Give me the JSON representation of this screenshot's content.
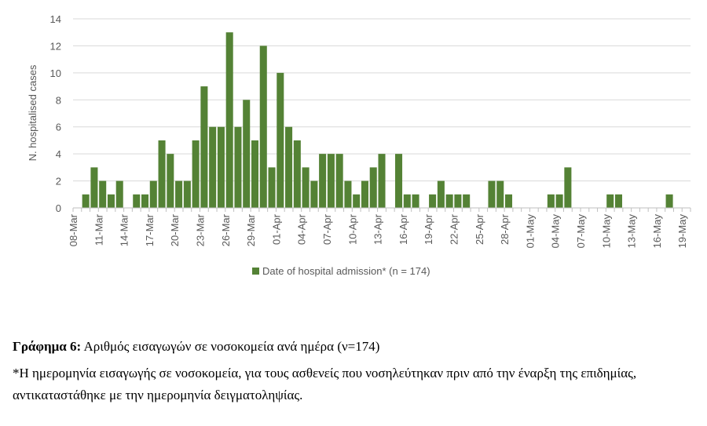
{
  "chart_data": {
    "type": "bar",
    "ylabel": "N. hospitalised cases",
    "xlabel": "",
    "ylim": [
      0,
      14
    ],
    "yticks": [
      0,
      2,
      4,
      6,
      8,
      10,
      12,
      14
    ],
    "grid": true,
    "legend_position": "bottom",
    "bar_color": "#548235",
    "categories": [
      "08-Mar",
      "09-Mar",
      "10-Mar",
      "11-Mar",
      "12-Mar",
      "13-Mar",
      "14-Mar",
      "15-Mar",
      "16-Mar",
      "17-Mar",
      "18-Mar",
      "19-Mar",
      "20-Mar",
      "21-Mar",
      "22-Mar",
      "23-Mar",
      "24-Mar",
      "25-Mar",
      "26-Mar",
      "27-Mar",
      "28-Mar",
      "29-Mar",
      "30-Mar",
      "31-Mar",
      "01-Apr",
      "02-Apr",
      "03-Apr",
      "04-Apr",
      "05-Apr",
      "06-Apr",
      "07-Apr",
      "08-Apr",
      "09-Apr",
      "10-Apr",
      "11-Apr",
      "12-Apr",
      "13-Apr",
      "14-Apr",
      "15-Apr",
      "16-Apr",
      "17-Apr",
      "18-Apr",
      "19-Apr",
      "20-Apr",
      "21-Apr",
      "22-Apr",
      "23-Apr",
      "24-Apr",
      "25-Apr",
      "26-Apr",
      "27-Apr",
      "28-Apr",
      "29-Apr",
      "30-Apr",
      "01-May",
      "02-May",
      "03-May",
      "04-May",
      "05-May",
      "06-May",
      "07-May",
      "08-May",
      "09-May",
      "10-May",
      "11-May",
      "12-May",
      "13-May",
      "14-May",
      "15-May",
      "16-May",
      "17-May",
      "18-May",
      "19-May"
    ],
    "tick_labels": [
      "08-Mar",
      "11-Mar",
      "14-Mar",
      "17-Mar",
      "20-Mar",
      "23-Mar",
      "26-Mar",
      "29-Mar",
      "01-Apr",
      "04-Apr",
      "07-Apr",
      "10-Apr",
      "13-Apr",
      "16-Apr",
      "19-Apr",
      "22-Apr",
      "25-Apr",
      "28-Apr",
      "01-May",
      "04-May",
      "07-May",
      "10-May",
      "13-May",
      "16-May",
      "19-May"
    ],
    "series": [
      {
        "name": "Date of hospital admission* (n = 174)",
        "values": [
          0,
          1,
          3,
          2,
          1,
          2,
          0,
          1,
          1,
          2,
          5,
          4,
          2,
          2,
          5,
          9,
          6,
          6,
          13,
          6,
          8,
          5,
          12,
          3,
          10,
          6,
          5,
          3,
          2,
          4,
          4,
          4,
          2,
          1,
          2,
          3,
          4,
          0,
          4,
          1,
          1,
          0,
          1,
          2,
          1,
          1,
          1,
          0,
          0,
          2,
          2,
          1,
          0,
          0,
          0,
          0,
          1,
          1,
          3,
          0,
          0,
          0,
          0,
          1,
          1,
          0,
          0,
          0,
          0,
          0,
          1,
          0,
          0
        ]
      }
    ]
  },
  "caption": {
    "figure_label": "Γράφημα 6:",
    "figure_text": " Αριθμός εισαγωγών σε νοσοκομεία ανά ημέρα (ν=174)",
    "footnote": "*Η ημερομηνία εισαγωγής σε νοσοκομεία, για τους ασθενείς που νοσηλεύτηκαν πριν από την έναρξη της επιδημίας, αντικαταστάθηκε με την ημερομηνία δειγματοληψίας."
  }
}
